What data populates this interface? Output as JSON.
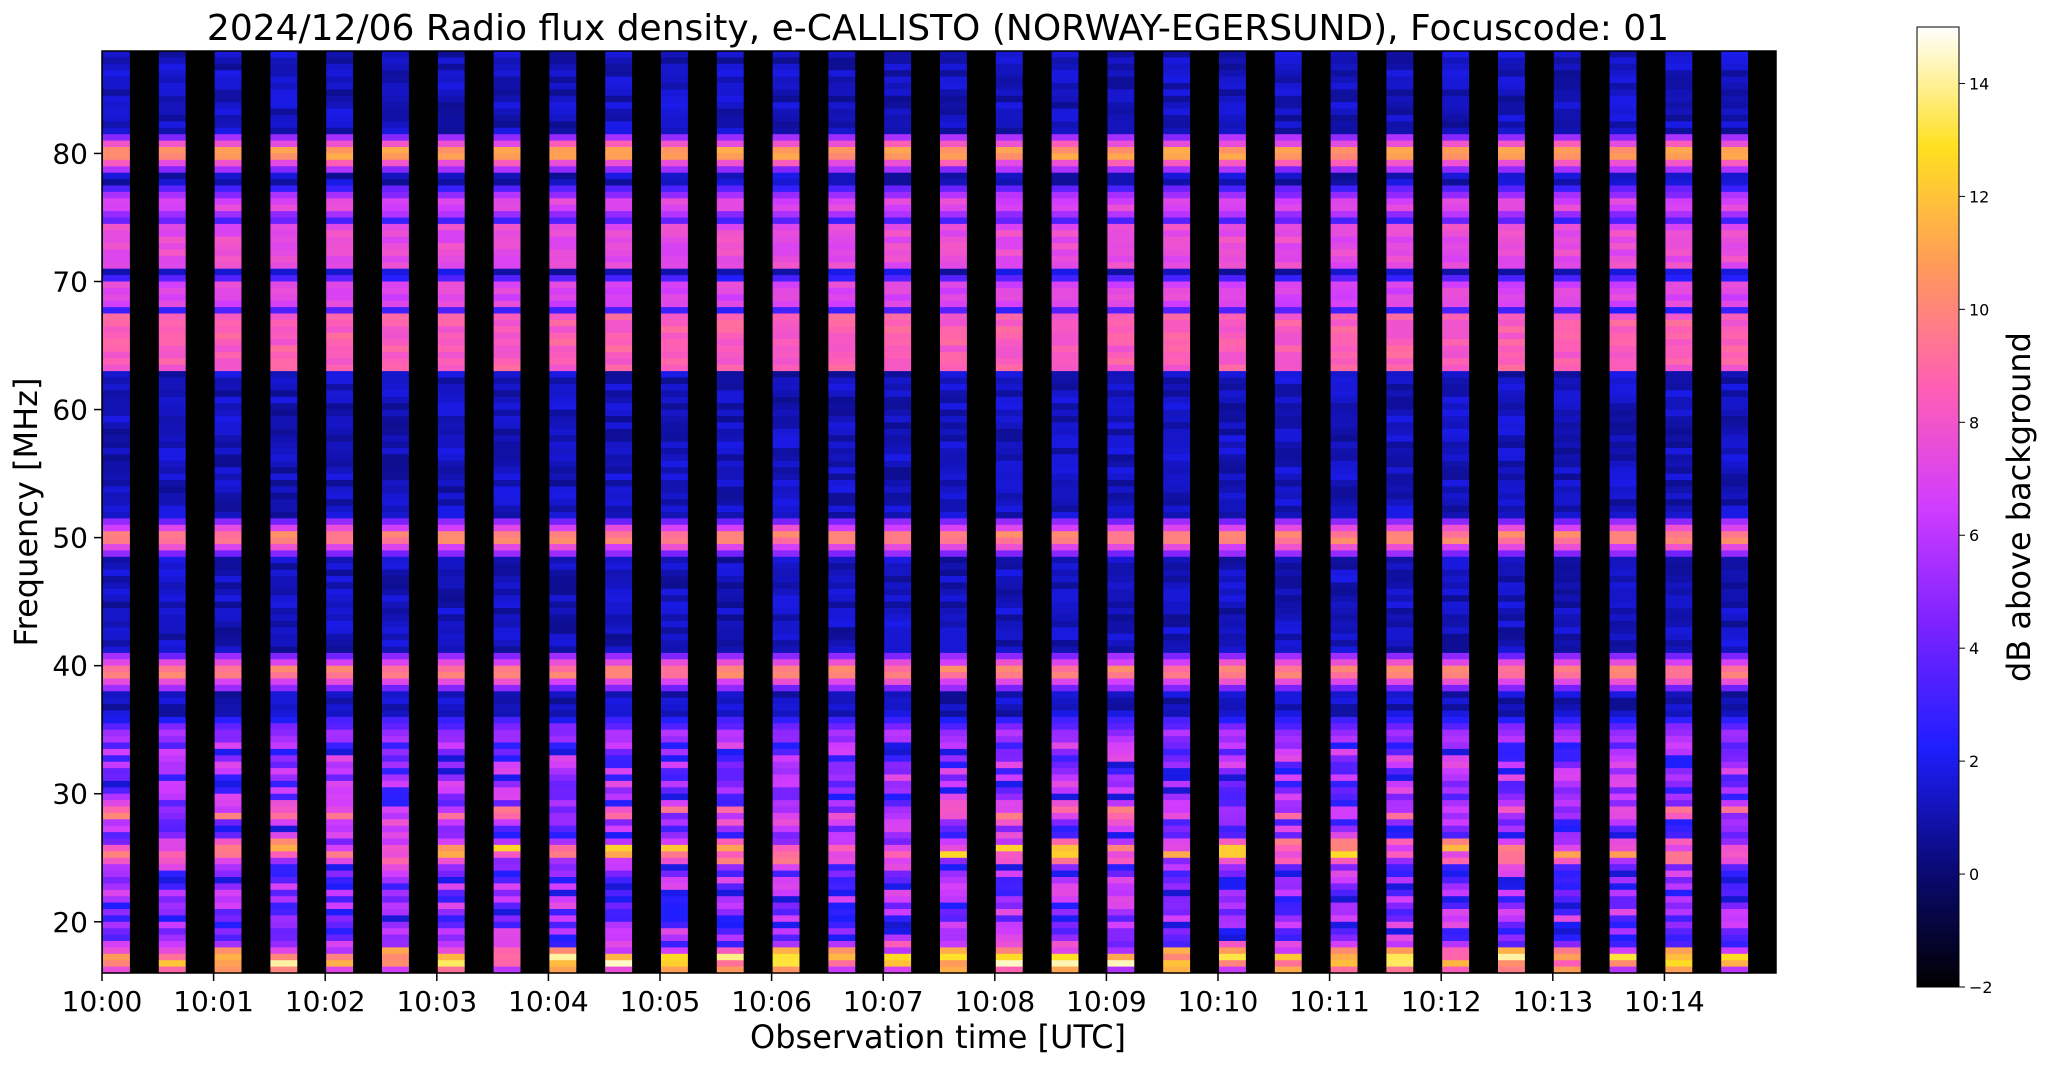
{
  "chart_data": {
    "type": "heatmap",
    "title": "2024/12/06  Radio flux density, e-CALLISTO (NORWAY-EGERSUND), Focuscode: 01",
    "xlabel": "Observation time [UTC]",
    "ylabel": "Frequency [MHz]",
    "x_ticks": [
      "10:00",
      "10:01",
      "10:02",
      "10:03",
      "10:04",
      "10:05",
      "10:06",
      "10:07",
      "10:08",
      "10:09",
      "10:10",
      "10:11",
      "10:12",
      "10:13",
      "10:14"
    ],
    "xlim": [
      "10:00:00",
      "10:15:00"
    ],
    "y_ticks": [
      20,
      30,
      40,
      50,
      60,
      70,
      80
    ],
    "ylim": [
      16,
      88
    ],
    "colorbar": {
      "label": "dB above background",
      "range": [
        -2,
        15
      ],
      "ticks": [
        -2,
        0,
        2,
        4,
        6,
        8,
        10,
        12,
        14
      ],
      "colormap": [
        "#000000",
        "#0a0a78",
        "#1e1eff",
        "#7a22ff",
        "#d03cff",
        "#ff5fb4",
        "#ff9a5a",
        "#ffe020",
        "#ffffff"
      ]
    },
    "pattern": {
      "sweep_period_s": 30,
      "signal_fraction": 0.5,
      "horizontal_bands": [
        {
          "freq_mhz": 80.0,
          "db": 12
        },
        {
          "freq_mhz": 76.0,
          "db": 8
        },
        {
          "freq_mhz": 72.5,
          "db": 8
        },
        {
          "freq_mhz": 69.0,
          "db": 7
        },
        {
          "freq_mhz": 65.5,
          "db": 9
        },
        {
          "freq_mhz": 50.0,
          "db": 11
        },
        {
          "freq_mhz": 39.5,
          "db": 11
        },
        {
          "freq_mhz": 34.5,
          "db": 6
        },
        {
          "freq_mhz": 28.5,
          "db": 8
        },
        {
          "freq_mhz": 25.5,
          "db": 11
        },
        {
          "freq_mhz": 17.0,
          "db": 13
        }
      ]
    }
  }
}
